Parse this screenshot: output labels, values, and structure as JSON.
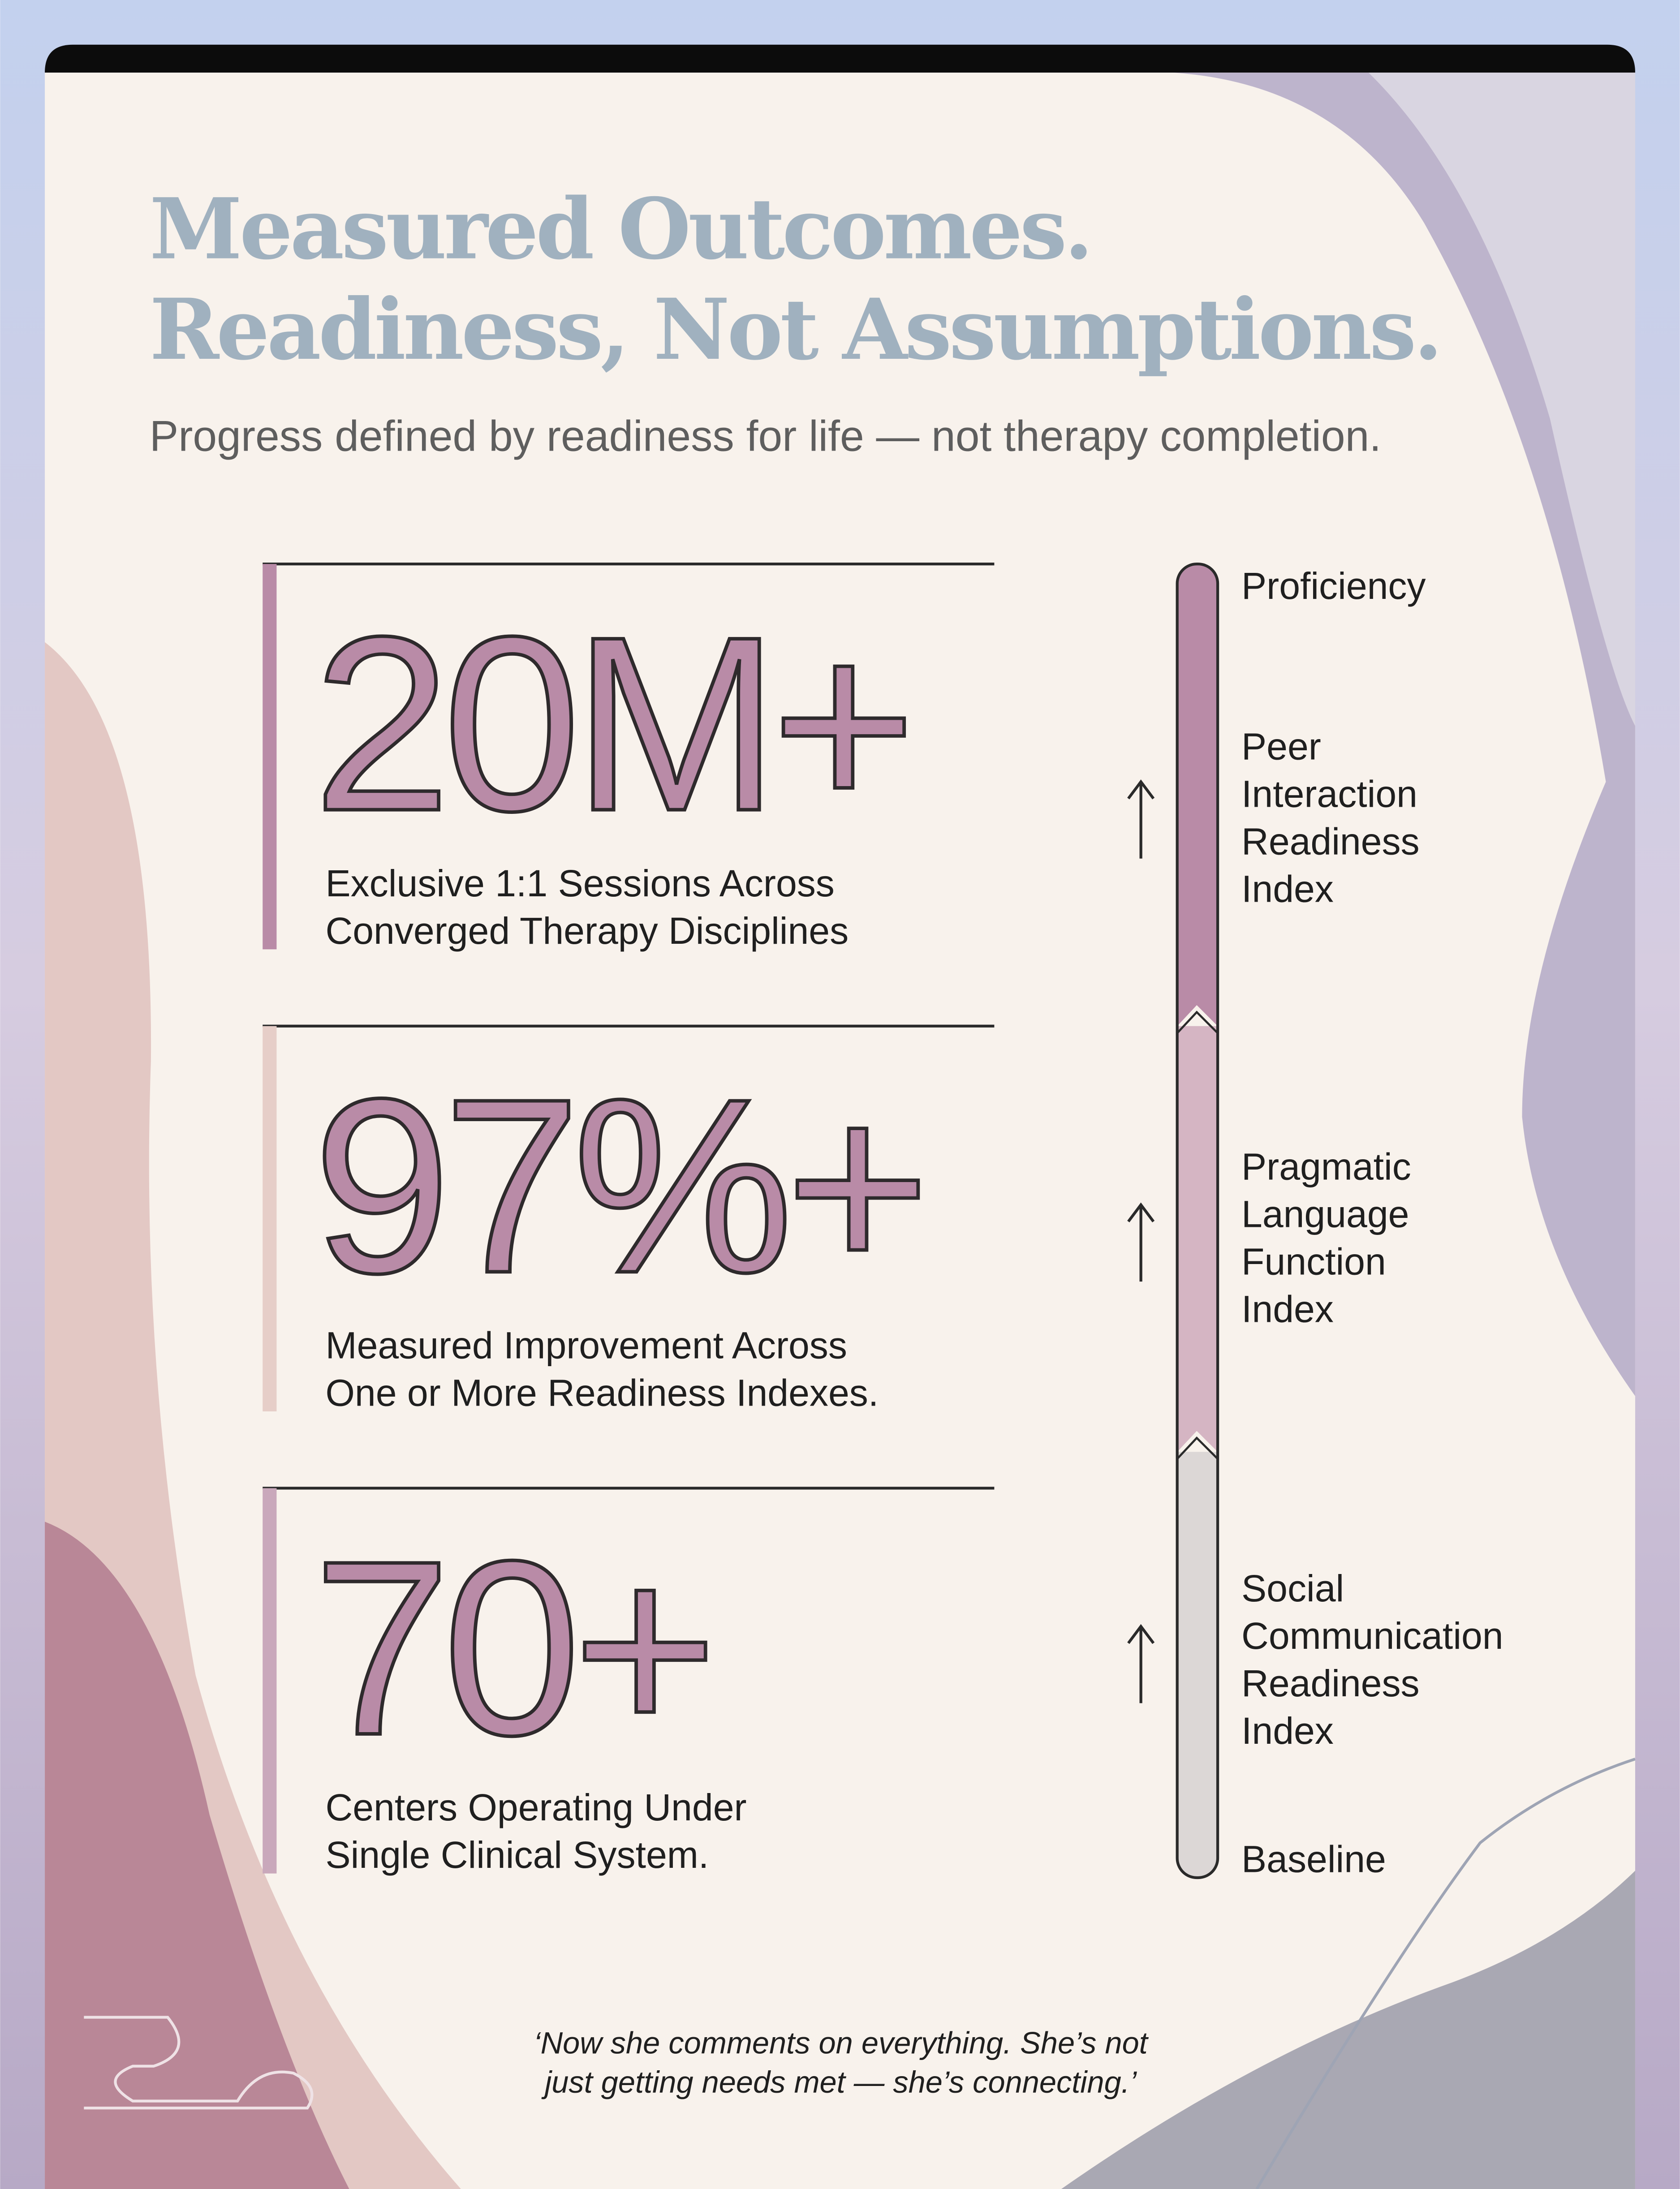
{
  "header": {
    "title": [
      "Measured Outcomes.",
      "Readiness, Not Assumptions."
    ],
    "subtitle": "Progress defined by readiness for life — not therapy completion."
  },
  "stats": [
    {
      "figure": "20M+",
      "description": [
        "Exclusive 1:1 Sessions Across",
        "Converged Therapy Disciplines"
      ]
    },
    {
      "figure": "97%+",
      "description": [
        "Measured Improvement Across",
        "One or More Readiness Indexes."
      ]
    },
    {
      "figure": "70+",
      "description": [
        "Centers Operating Under",
        "Single Clinical System."
      ]
    }
  ],
  "scale": {
    "top": "Proficiency",
    "levels": [
      [
        "Peer",
        "Interaction",
        "Readiness",
        "Index"
      ],
      [
        "Pragmatic",
        "Language",
        "Function",
        "Index"
      ],
      [
        "Social",
        "Communication",
        "Readiness",
        "Index"
      ]
    ],
    "bottom": "Baseline"
  },
  "quote": [
    "‘Now she comments on everything. She’s not",
    "just getting needs met — she’s connecting.’"
  ]
}
